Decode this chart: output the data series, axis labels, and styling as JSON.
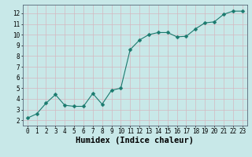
{
  "x": [
    0,
    1,
    2,
    3,
    4,
    5,
    6,
    7,
    8,
    9,
    10,
    11,
    12,
    13,
    14,
    15,
    16,
    17,
    18,
    19,
    20,
    21,
    22,
    23
  ],
  "y": [
    2.2,
    2.6,
    3.6,
    4.4,
    3.4,
    3.3,
    3.3,
    4.5,
    3.5,
    4.8,
    5.0,
    8.6,
    9.5,
    10.0,
    10.2,
    10.2,
    9.8,
    9.85,
    10.55,
    11.1,
    11.2,
    11.9,
    12.2,
    12.2
  ],
  "line_color": "#1a7a6e",
  "marker": "D",
  "marker_size": 2.5,
  "bg_color": "#c8e8e8",
  "grid_minor_color": "#d4b8c0",
  "grid_major_color": "#d4b8c0",
  "xlabel": "Humidex (Indice chaleur)",
  "xlim": [
    -0.5,
    23.5
  ],
  "ylim": [
    1.5,
    12.8
  ],
  "yticks": [
    2,
    3,
    4,
    5,
    6,
    7,
    8,
    9,
    10,
    11,
    12
  ],
  "xticks": [
    0,
    1,
    2,
    3,
    4,
    5,
    6,
    7,
    8,
    9,
    10,
    11,
    12,
    13,
    14,
    15,
    16,
    17,
    18,
    19,
    20,
    21,
    22,
    23
  ],
  "tick_fontsize": 5.5,
  "label_fontsize": 7.5,
  "spine_color": "#556677",
  "linewidth": 0.8
}
